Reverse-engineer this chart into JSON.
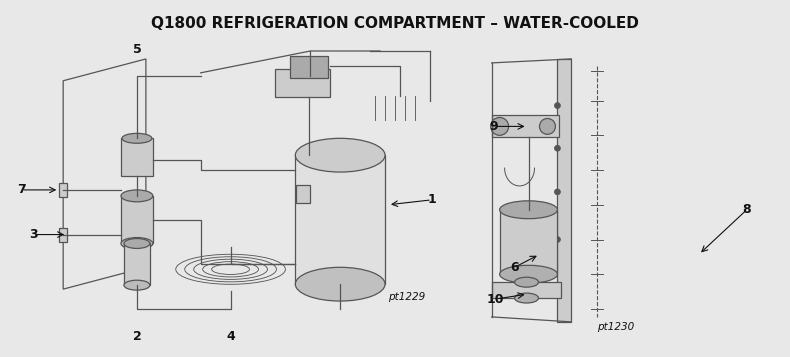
{
  "title": "Q1800 REFRIGERATION COMPARTMENT – WATER-COOLED",
  "title_fontsize": 11,
  "bg_color": "#e8e8e8",
  "fig_width": 7.9,
  "fig_height": 3.57,
  "dpi": 100
}
